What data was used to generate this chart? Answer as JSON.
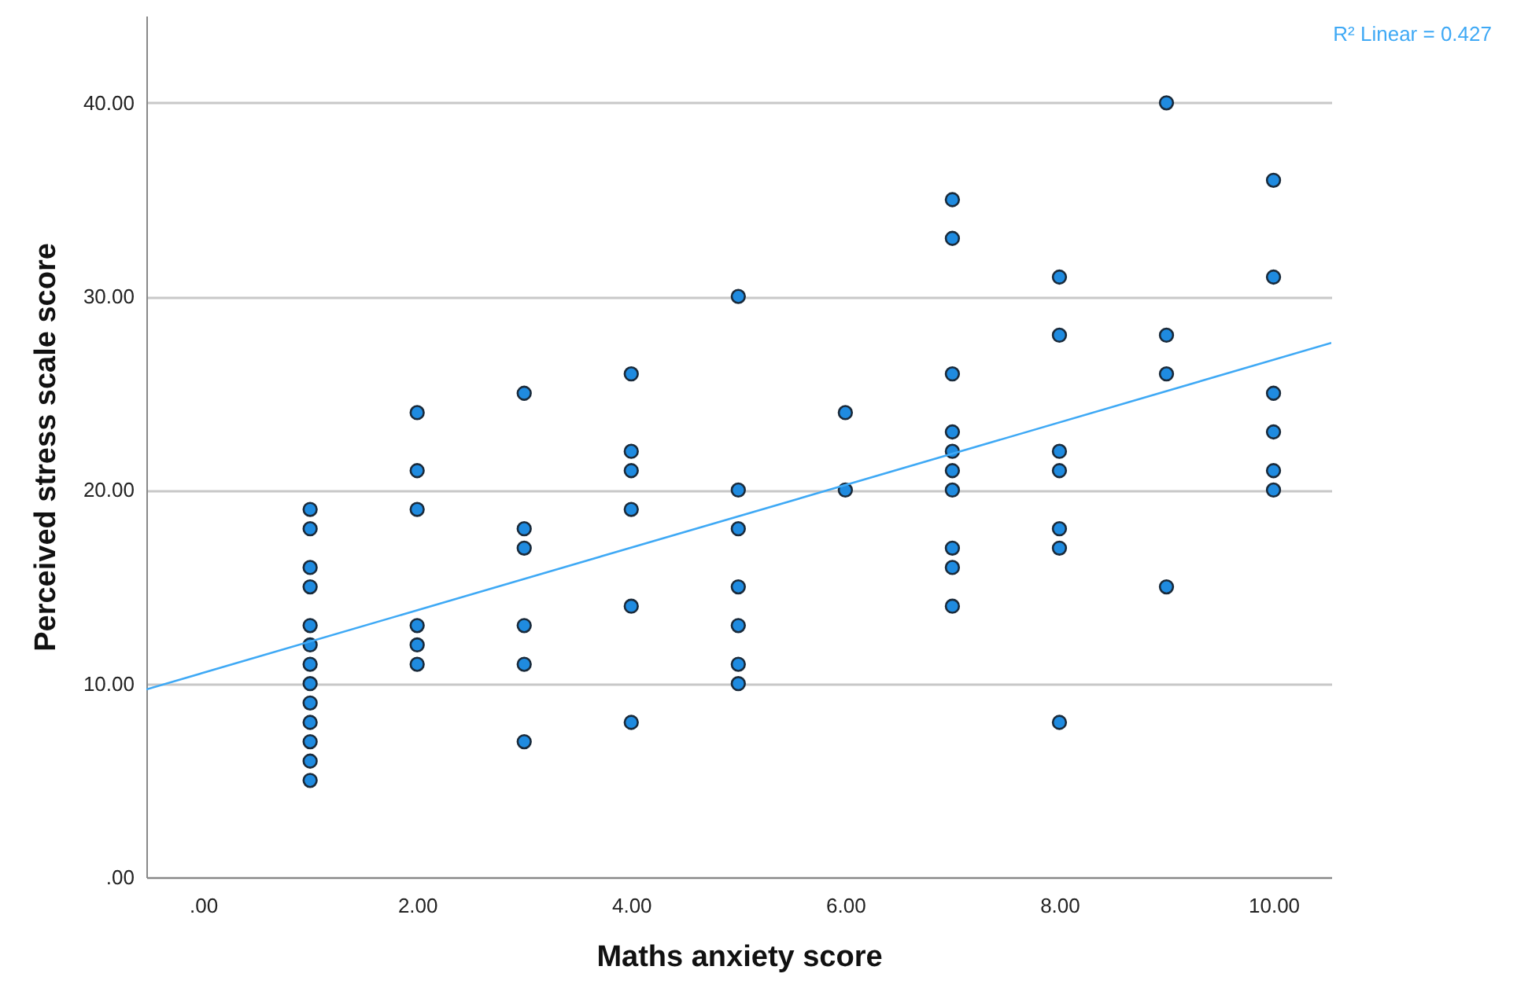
{
  "chart_data": {
    "type": "scatter",
    "xlabel": "Maths anxiety score",
    "ylabel": "Perceived stress scale score",
    "xlim": [
      -0.53,
      10.54
    ],
    "ylim": [
      0,
      44.5
    ],
    "xticks": [
      {
        "value": 0,
        "label": ".00"
      },
      {
        "value": 2,
        "label": "2.00"
      },
      {
        "value": 4,
        "label": "4.00"
      },
      {
        "value": 6,
        "label": "6.00"
      },
      {
        "value": 8,
        "label": "8.00"
      },
      {
        "value": 10,
        "label": "10.00"
      }
    ],
    "yticks": [
      {
        "value": 0,
        "label": ".00"
      },
      {
        "value": 10,
        "label": "10.00"
      },
      {
        "value": 20,
        "label": "20.00"
      },
      {
        "value": 30,
        "label": "30.00"
      },
      {
        "value": 40,
        "label": "40.00"
      }
    ],
    "grid": "y",
    "marker": "circle",
    "annotations": [
      "R² Linear = 0.427"
    ],
    "series": [
      {
        "color": "#1f8be0",
        "x": [
          1,
          1,
          1,
          1,
          1,
          1,
          1,
          1,
          1,
          1,
          1,
          1,
          1,
          2,
          2,
          2,
          2,
          2,
          2,
          3,
          3,
          3,
          3,
          3,
          3,
          4,
          4,
          4,
          4,
          4,
          4,
          5,
          5,
          5,
          5,
          5,
          5,
          5,
          6,
          6,
          7,
          7,
          7,
          7,
          7,
          7,
          7,
          7,
          7,
          7,
          8,
          8,
          8,
          8,
          8,
          8,
          8,
          9,
          9,
          9,
          9,
          10,
          10,
          10,
          10,
          10,
          10
        ],
        "values": [
          19,
          18,
          16,
          15,
          13,
          12,
          11,
          10,
          9,
          8,
          7,
          6,
          5,
          24,
          21,
          19,
          13,
          12,
          11,
          25,
          18,
          17,
          13,
          11,
          7,
          26,
          22,
          21,
          19,
          14,
          8,
          30,
          20,
          18,
          15,
          13,
          11,
          10,
          24,
          20,
          35,
          33,
          26,
          23,
          22,
          21,
          20,
          17,
          16,
          14,
          31,
          28,
          22,
          21,
          18,
          17,
          8,
          40,
          28,
          26,
          15,
          36,
          31,
          25,
          23,
          21,
          20
        ]
      },
      {
        "type": "line",
        "color": "#3fa9f5",
        "x": [
          -0.53,
          10.54
        ],
        "values": [
          9.7,
          27.6
        ],
        "marker": "none"
      }
    ]
  }
}
